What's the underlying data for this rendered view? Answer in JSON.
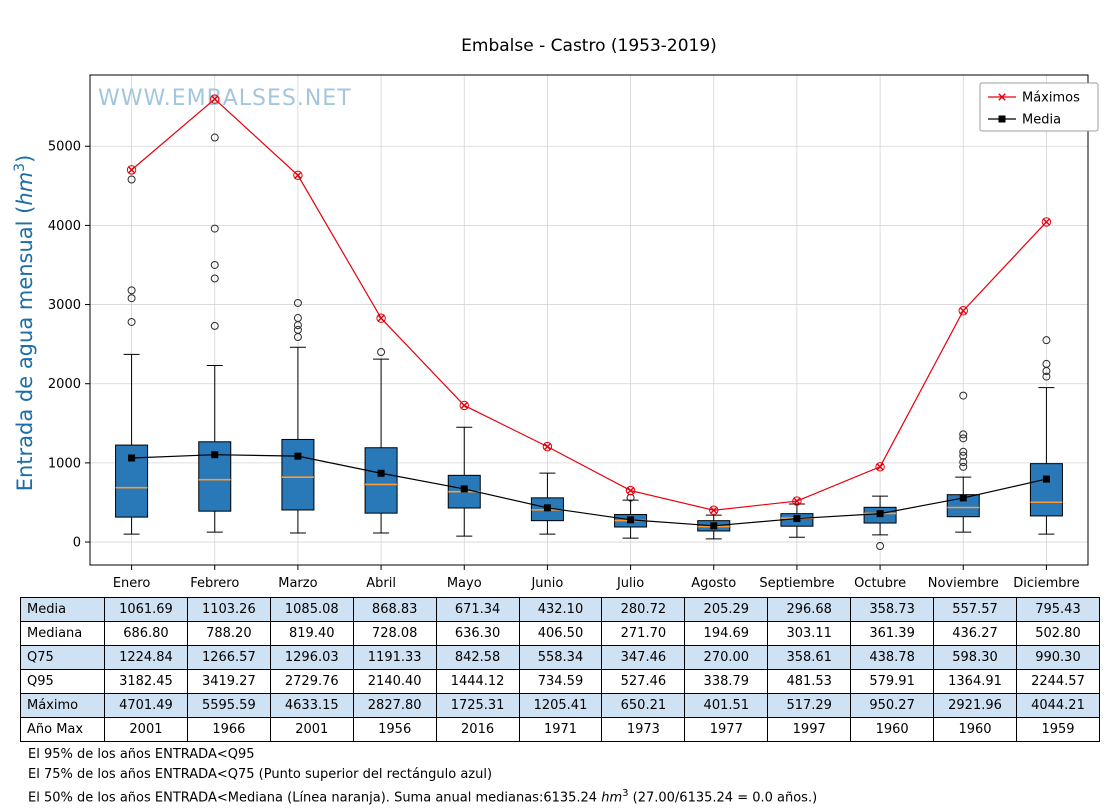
{
  "title": "Embalse - Castro (1953-2019)",
  "watermark": "WWW.EMBALSES.NET",
  "colors": {
    "box_fill": "#2979b9",
    "box_edge": "#000000",
    "median": "#ff9933",
    "max_line": "#e8000b",
    "media_line": "#000000",
    "grid": "#d5d5d5",
    "watermark": "#a3c6de",
    "ylabel": "#1b6ea8",
    "table_shaded_row": "#cfe2f3"
  },
  "chart_data": {
    "type": "boxplot",
    "title": "Embalse - Castro (1953-2019)",
    "xlabel": "",
    "ylabel_text": "Entrada de agua mensual (hm³)",
    "ylabel_parts": {
      "pre": "Entrada de agua mensual (",
      "italic": "hm",
      "sup": "3",
      "post": ")"
    },
    "categories": [
      "Enero",
      "Febrero",
      "Marzo",
      "Abril",
      "Mayo",
      "Junio",
      "Julio",
      "Agosto",
      "Septiembre",
      "Octubre",
      "Noviembre",
      "Diciembre"
    ],
    "yticks": [
      0,
      1000,
      2000,
      3000,
      4000,
      5000
    ],
    "ylim": [
      -290,
      5900
    ],
    "grid": true,
    "legend_position": "top-right",
    "series": [
      {
        "name": "Máximos",
        "type": "line",
        "marker": "x",
        "color": "#e8000b",
        "values": [
          4701.49,
          5595.59,
          4633.15,
          2827.8,
          1725.31,
          1205.41,
          650.21,
          401.51,
          517.29,
          950.27,
          2921.96,
          4044.21
        ]
      },
      {
        "name": "Media",
        "type": "line",
        "marker": "square",
        "color": "#000000",
        "values": [
          1061.69,
          1103.26,
          1085.08,
          868.83,
          671.34,
          432.1,
          280.72,
          205.29,
          296.68,
          358.73,
          557.57,
          795.43
        ]
      }
    ],
    "boxes": {
      "median": [
        686.8,
        788.2,
        819.4,
        728.08,
        636.3,
        406.5,
        271.7,
        194.69,
        303.11,
        361.39,
        436.27,
        502.8
      ],
      "q25": [
        315,
        390,
        405,
        365,
        430,
        270,
        190,
        140,
        200,
        240,
        320,
        330
      ],
      "q75": [
        1224.84,
        1266.57,
        1296.03,
        1191.33,
        842.58,
        558.34,
        347.46,
        270.0,
        358.61,
        438.78,
        598.3,
        990.3
      ],
      "whisker_low": [
        100,
        125,
        115,
        115,
        75,
        100,
        50,
        40,
        60,
        90,
        125,
        100
      ],
      "whisker_high": [
        2370,
        2230,
        2460,
        2310,
        1450,
        870,
        530,
        340,
        480,
        580,
        820,
        1950
      ],
      "outliers": [
        [
          2780,
          3080,
          3180,
          4580
        ],
        [
          2730,
          3330,
          3500,
          3960,
          5110
        ],
        [
          2590,
          2680,
          2740,
          2830,
          3020
        ],
        [
          2400
        ],
        [],
        [],
        [
          560
        ],
        [],
        [],
        [
          -50
        ],
        [
          950,
          1010,
          1090,
          1140,
          1310,
          1360,
          1850
        ],
        [
          2090,
          2160,
          2250,
          2550
        ]
      ]
    },
    "q95": [
      3182.45,
      3419.27,
      2729.76,
      2140.4,
      1444.12,
      734.59,
      527.46,
      338.79,
      481.53,
      579.91,
      1364.91,
      2244.57
    ]
  },
  "table": {
    "rows": [
      {
        "label": "Media",
        "shaded": true,
        "values": [
          "1061.69",
          "1103.26",
          "1085.08",
          "868.83",
          "671.34",
          "432.10",
          "280.72",
          "205.29",
          "296.68",
          "358.73",
          "557.57",
          "795.43"
        ]
      },
      {
        "label": "Mediana",
        "shaded": false,
        "values": [
          "686.80",
          "788.20",
          "819.40",
          "728.08",
          "636.30",
          "406.50",
          "271.70",
          "194.69",
          "303.11",
          "361.39",
          "436.27",
          "502.80"
        ]
      },
      {
        "label": "Q75",
        "shaded": true,
        "values": [
          "1224.84",
          "1266.57",
          "1296.03",
          "1191.33",
          "842.58",
          "558.34",
          "347.46",
          "270.00",
          "358.61",
          "438.78",
          "598.30",
          "990.30"
        ]
      },
      {
        "label": "Q95",
        "shaded": false,
        "values": [
          "3182.45",
          "3419.27",
          "2729.76",
          "2140.40",
          "1444.12",
          "734.59",
          "527.46",
          "338.79",
          "481.53",
          "579.91",
          "1364.91",
          "2244.57"
        ]
      },
      {
        "label": "Máximo",
        "shaded": true,
        "values": [
          "4701.49",
          "5595.59",
          "4633.15",
          "2827.80",
          "1725.31",
          "1205.41",
          "650.21",
          "401.51",
          "517.29",
          "950.27",
          "2921.96",
          "4044.21"
        ]
      },
      {
        "label": "Año Max",
        "shaded": false,
        "values": [
          "2001",
          "1966",
          "2001",
          "1956",
          "2016",
          "1971",
          "1973",
          "1977",
          "1997",
          "1960",
          "1960",
          "1959"
        ]
      }
    ]
  },
  "footnotes": {
    "line1": "El 95% de los años ENTRADA<Q95",
    "line2": "El 75% de los años ENTRADA<Q75 (Punto superior del rectángulo azul)",
    "line3_pre": "El 50% de los años ENTRADA<Mediana (Línea naranja). Suma anual medianas:6135.24 ",
    "line3_italic": "hm",
    "line3_sup": "3",
    "line3_post": " (27.00/6135.24 = 0.0 años.)"
  }
}
